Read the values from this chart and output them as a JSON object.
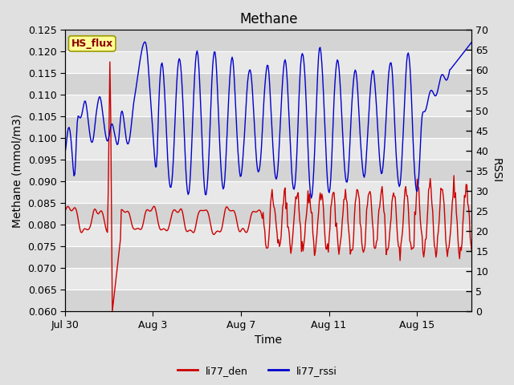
{
  "title": "Methane",
  "xlabel": "Time",
  "ylabel_left": "Methane (mmol/m3)",
  "ylabel_right": "RSSI",
  "annotation_text": "HS_flux",
  "ylim_left": [
    0.06,
    0.125
  ],
  "ylim_right": [
    0,
    70
  ],
  "yticks_left": [
    0.06,
    0.065,
    0.07,
    0.075,
    0.08,
    0.085,
    0.09,
    0.095,
    0.1,
    0.105,
    0.11,
    0.115,
    0.12,
    0.125
  ],
  "yticks_right": [
    0,
    5,
    10,
    15,
    20,
    25,
    30,
    35,
    40,
    45,
    50,
    55,
    60,
    65,
    70
  ],
  "color_red": "#cc0000",
  "color_blue": "#0000cc",
  "fig_bg_color": "#e0e0e0",
  "band_colors": [
    "#d4d4d4",
    "#e8e8e8"
  ],
  "legend_labels": [
    "li77_den",
    "li77_rssi"
  ],
  "annotation_bg": "#ffff99",
  "annotation_border": "#999900",
  "title_fontsize": 12,
  "label_fontsize": 10,
  "tick_fontsize": 9,
  "xtick_days": [
    0,
    4,
    8,
    12,
    16
  ],
  "xtick_labels": [
    "Jul 30",
    "Aug 3",
    "Aug 7",
    "Aug 11",
    "Aug 15"
  ],
  "xlim": [
    0,
    18.5
  ]
}
